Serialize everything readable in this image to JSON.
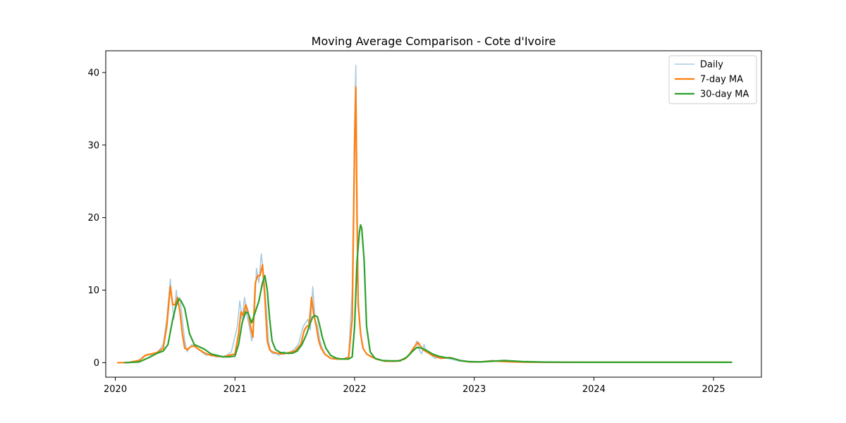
{
  "chart_data": {
    "type": "line",
    "title": "Moving Average Comparison - Cote d'Ivoire",
    "xlabel": "",
    "ylabel": "",
    "xlim": [
      2019.92,
      2025.4
    ],
    "ylim": [
      -2,
      43
    ],
    "x_ticks": [
      2020,
      2021,
      2022,
      2023,
      2024,
      2025
    ],
    "x_tick_labels": [
      "2020",
      "2021",
      "2022",
      "2023",
      "2024",
      "2025"
    ],
    "y_ticks": [
      0,
      10,
      20,
      30,
      40
    ],
    "y_tick_labels": [
      "0",
      "10",
      "20",
      "30",
      "40"
    ],
    "grid": false,
    "legend_position": "top-right",
    "series": [
      {
        "name": "Daily",
        "color": "#a6cbe3",
        "x": [
          2020.02,
          2020.15,
          2020.22,
          2020.27,
          2020.31,
          2020.34,
          2020.37,
          2020.4,
          2020.43,
          2020.46,
          2020.47,
          2020.49,
          2020.51,
          2020.52,
          2020.54,
          2020.56,
          2020.58,
          2020.6,
          2020.62,
          2020.64,
          2020.68,
          2020.72,
          2020.76,
          2020.8,
          2020.84,
          2020.88,
          2020.93,
          2020.97,
          2021.02,
          2021.04,
          2021.06,
          2021.08,
          2021.1,
          2021.12,
          2021.14,
          2021.16,
          2021.18,
          2021.2,
          2021.22,
          2021.24,
          2021.26,
          2021.28,
          2021.3,
          2021.32,
          2021.34,
          2021.37,
          2021.41,
          2021.45,
          2021.49,
          2021.53,
          2021.57,
          2021.61,
          2021.63,
          2021.65,
          2021.67,
          2021.69,
          2021.71,
          2021.73,
          2021.76,
          2021.8,
          2021.85,
          2021.9,
          2021.95,
          2021.98,
          2022.0,
          2022.01,
          2022.02,
          2022.03,
          2022.05,
          2022.07,
          2022.1,
          2022.15,
          2022.22,
          2022.3,
          2022.38,
          2022.44,
          2022.48,
          2022.5,
          2022.52,
          2022.54,
          2022.56,
          2022.58,
          2022.6,
          2022.63,
          2022.67,
          2022.72,
          2022.8,
          2022.88,
          2022.96,
          2023.05,
          2023.15,
          2023.3,
          2023.5,
          2023.8,
          2024.1,
          2024.5,
          2024.9,
          2025.15
        ],
        "values": [
          0,
          0.1,
          0.5,
          1.2,
          1.0,
          1.3,
          1.8,
          2.5,
          6,
          11.5,
          9,
          6,
          10,
          8,
          9,
          6,
          3,
          1.5,
          2,
          2.5,
          2,
          1.5,
          1,
          1.2,
          0.8,
          0.8,
          1,
          1.5,
          5,
          8.5,
          6,
          9,
          6.5,
          5,
          3,
          6,
          13,
          11,
          15,
          12,
          8,
          3,
          1.5,
          1.2,
          1.3,
          1.0,
          1.5,
          1.2,
          1.8,
          2.5,
          5,
          6,
          4.5,
          10.5,
          6,
          5,
          3,
          2,
          1,
          0.6,
          0.5,
          0.5,
          0.8,
          10,
          33,
          41,
          24,
          9,
          4,
          2,
          1.2,
          0.8,
          0.3,
          0.2,
          0.2,
          0.8,
          1.5,
          2.0,
          3.0,
          1.8,
          1.2,
          2.5,
          1.5,
          1.2,
          0.6,
          0.8,
          0.5,
          0.2,
          0.1,
          0.1,
          0.3,
          0.1,
          0.05,
          0.05,
          0.05,
          0.05,
          0.05,
          0.05
        ]
      },
      {
        "name": "7-day MA",
        "color": "#ff7f0e",
        "x": [
          2020.02,
          2020.1,
          2020.2,
          2020.25,
          2020.3,
          2020.35,
          2020.4,
          2020.43,
          2020.46,
          2020.48,
          2020.5,
          2020.52,
          2020.54,
          2020.56,
          2020.58,
          2020.6,
          2020.63,
          2020.66,
          2020.7,
          2020.75,
          2020.8,
          2020.85,
          2020.9,
          2020.95,
          2021.0,
          2021.03,
          2021.05,
          2021.07,
          2021.09,
          2021.11,
          2021.13,
          2021.15,
          2021.17,
          2021.19,
          2021.21,
          2021.23,
          2021.25,
          2021.27,
          2021.29,
          2021.31,
          2021.35,
          2021.4,
          2021.45,
          2021.5,
          2021.55,
          2021.58,
          2021.6,
          2021.62,
          2021.64,
          2021.66,
          2021.68,
          2021.7,
          2021.72,
          2021.75,
          2021.8,
          2021.85,
          2021.9,
          2021.95,
          2021.98,
          2022.0,
          2022.01,
          2022.02,
          2022.03,
          2022.05,
          2022.07,
          2022.1,
          2022.13,
          2022.18,
          2022.25,
          2022.35,
          2022.42,
          2022.46,
          2022.5,
          2022.53,
          2022.57,
          2022.6,
          2022.65,
          2022.72,
          2022.8,
          2022.88,
          2022.96,
          2023.05,
          2023.15,
          2023.25,
          2023.4,
          2023.6,
          2023.8,
          2024.0,
          2024.3,
          2024.6,
          2024.9,
          2025.15
        ],
        "values": [
          0,
          0,
          0.3,
          1.0,
          1.2,
          1.4,
          2.0,
          5,
          10.5,
          8,
          8,
          9,
          7,
          4,
          2,
          1.8,
          2.2,
          2.3,
          1.8,
          1.3,
          1.0,
          0.9,
          0.8,
          1.0,
          1.2,
          4,
          7,
          6.5,
          8,
          7,
          5,
          3.5,
          11,
          12,
          12,
          13.5,
          9,
          3,
          1.8,
          1.5,
          1.3,
          1.2,
          1.4,
          1.6,
          2.5,
          4.5,
          5,
          5.2,
          9,
          6.5,
          5,
          3,
          2,
          1.2,
          0.6,
          0.5,
          0.5,
          0.7,
          6,
          30,
          38,
          20,
          8,
          4,
          2,
          1.2,
          0.9,
          0.5,
          0.2,
          0.2,
          0.5,
          1.2,
          2.2,
          2.8,
          1.8,
          1.5,
          1.0,
          0.6,
          0.7,
          0.3,
          0.1,
          0.1,
          0.25,
          0.15,
          0.08,
          0.05,
          0.05,
          0.05,
          0.05,
          0.05,
          0.05,
          0.05
        ]
      },
      {
        "name": "30-day MA",
        "color": "#2ca02c",
        "x": [
          2020.08,
          2020.2,
          2020.28,
          2020.35,
          2020.4,
          2020.44,
          2020.48,
          2020.51,
          2020.53,
          2020.55,
          2020.58,
          2020.62,
          2020.66,
          2020.7,
          2020.75,
          2020.8,
          2020.85,
          2020.9,
          2020.95,
          2021.0,
          2021.03,
          2021.06,
          2021.09,
          2021.11,
          2021.14,
          2021.17,
          2021.2,
          2021.23,
          2021.25,
          2021.27,
          2021.29,
          2021.31,
          2021.34,
          2021.38,
          2021.43,
          2021.48,
          2021.52,
          2021.56,
          2021.6,
          2021.63,
          2021.65,
          2021.67,
          2021.69,
          2021.71,
          2021.73,
          2021.76,
          2021.8,
          2021.85,
          2021.9,
          2021.95,
          2021.98,
          2022.0,
          2022.02,
          2022.04,
          2022.05,
          2022.06,
          2022.08,
          2022.1,
          2022.13,
          2022.17,
          2022.23,
          2022.3,
          2022.38,
          2022.44,
          2022.48,
          2022.52,
          2022.56,
          2022.6,
          2022.65,
          2022.7,
          2022.76,
          2022.82,
          2022.88,
          2022.95,
          2023.05,
          2023.15,
          2023.25,
          2023.4,
          2023.6,
          2023.8,
          2024.0,
          2024.3,
          2024.6,
          2024.9,
          2025.15
        ],
        "values": [
          0,
          0.1,
          0.7,
          1.3,
          1.6,
          2.5,
          6,
          8,
          8.8,
          8.5,
          7.5,
          4,
          2.5,
          2.2,
          1.8,
          1.2,
          1.0,
          0.8,
          0.8,
          0.9,
          2.5,
          5.5,
          7,
          6.8,
          5.5,
          7,
          8.5,
          11,
          12,
          10,
          6,
          3,
          1.8,
          1.4,
          1.3,
          1.3,
          1.6,
          2.5,
          4,
          5.5,
          6.3,
          6.5,
          6.3,
          5,
          3.5,
          2,
          1.0,
          0.6,
          0.5,
          0.5,
          0.8,
          5,
          14,
          18,
          19,
          18.5,
          14,
          5,
          1.5,
          0.6,
          0.3,
          0.25,
          0.25,
          0.8,
          1.5,
          2.1,
          2.0,
          1.7,
          1.2,
          0.9,
          0.7,
          0.6,
          0.3,
          0.15,
          0.1,
          0.2,
          0.3,
          0.15,
          0.08,
          0.06,
          0.05,
          0.05,
          0.05,
          0.05,
          0.05
        ]
      }
    ]
  }
}
